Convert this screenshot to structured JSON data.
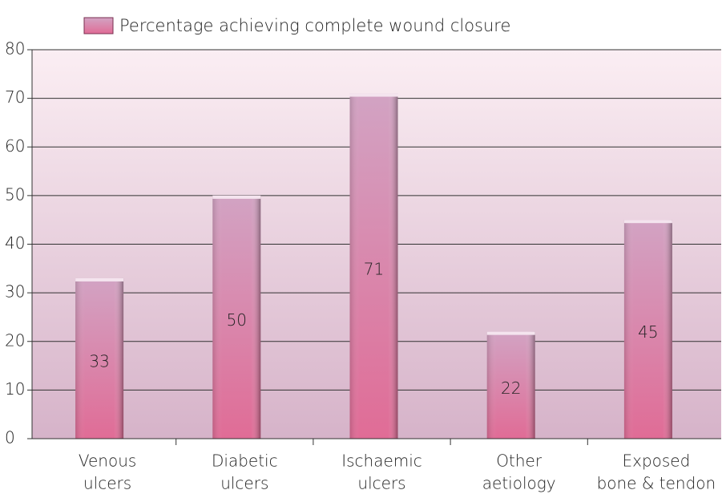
{
  "chart_data": {
    "type": "bar",
    "legend": "Percentage achieving complete wound closure",
    "categories": [
      [
        "Venous",
        "ulcers"
      ],
      [
        "Diabetic",
        "ulcers"
      ],
      [
        "Ischaemic",
        "ulcers"
      ],
      [
        "Other",
        "aetiology"
      ],
      [
        "Exposed",
        "bone & tendon"
      ]
    ],
    "values": [
      33,
      50,
      71,
      22,
      45
    ],
    "color": "#d98aaa",
    "ylim": [
      0,
      80
    ],
    "yticks": [
      0,
      10,
      20,
      30,
      40,
      50,
      60,
      70,
      80
    ],
    "grid": true
  }
}
